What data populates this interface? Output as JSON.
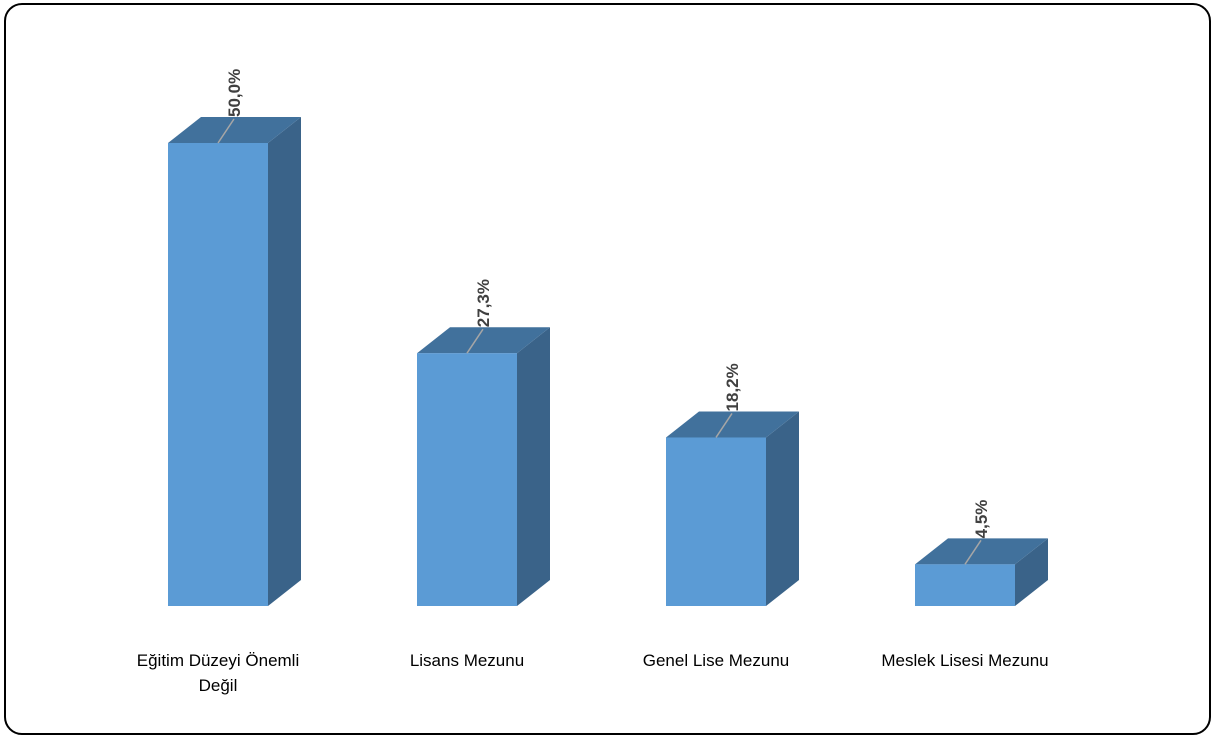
{
  "chart_data": {
    "type": "bar",
    "title": "",
    "xlabel": "",
    "ylabel": "",
    "categories": [
      [
        "Eğitim Düzeyi Önemli",
        "Değil"
      ],
      [
        "Lisans Mezunu"
      ],
      [
        "Genel Lise Mezunu"
      ],
      [
        "Meslek Lisesi Mezunu"
      ]
    ],
    "values": [
      50.0,
      27.3,
      18.2,
      4.5
    ],
    "value_labels": [
      "50,0%",
      "27,3%",
      "18,2%",
      "4,5%"
    ],
    "ylim": [
      0,
      50
    ],
    "grid": false,
    "legend": "none",
    "colors": {
      "front": "#5B9BD5",
      "top": "#41719C",
      "side": "#3A6389",
      "leader": "#A6A6A6"
    }
  }
}
